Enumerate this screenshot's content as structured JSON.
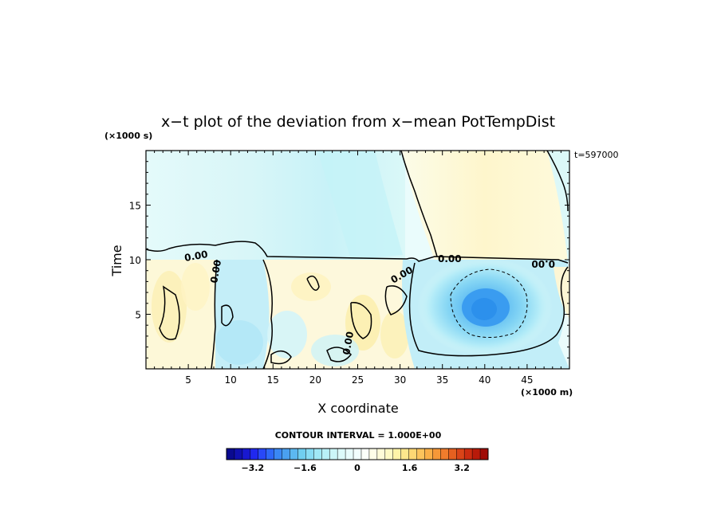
{
  "chart_data": {
    "type": "heatmap",
    "title": "x−t plot of the deviation from x−mean PotTempDist",
    "xlabel": "X coordinate",
    "ylabel": "Time",
    "x_unit": "(×1000 m)",
    "y_unit": "(×1000 s)",
    "xlim": [
      0,
      50
    ],
    "ylim": [
      0,
      20
    ],
    "x_ticks": [
      5,
      10,
      15,
      20,
      25,
      30,
      35,
      40,
      45
    ],
    "x_tick_labels": [
      "5",
      "10",
      "15",
      "20",
      "25",
      "30",
      "35",
      "40",
      "45"
    ],
    "y_ticks": [
      5,
      10,
      15
    ],
    "y_tick_labels": [
      "5",
      "10",
      "15"
    ],
    "corner_label": "t=597000",
    "contour_interval_text": "CONTOUR INTERVAL = 1.000E+00",
    "contour_labels": [
      "0.00",
      "0.00",
      "0.00",
      "0.00",
      "0.00",
      "0.00"
    ],
    "colorbar": {
      "range": [
        -4,
        4
      ],
      "tick_values": [
        -3.2,
        -1.6,
        0,
        1.6,
        3.2
      ],
      "tick_labels": [
        "−3.2",
        "−1.6",
        "0",
        "1.6",
        "3.2"
      ],
      "colors": [
        "#0a0a90",
        "#1010b0",
        "#1818d0",
        "#2028ee",
        "#2848f8",
        "#2e68f8",
        "#3a88f4",
        "#4aa0f0",
        "#5cb8f0",
        "#70cef0",
        "#88dcf4",
        "#a0e8f6",
        "#b8f0f8",
        "#ccf6f8",
        "#dcfafa",
        "#e8fcfc",
        "#f2fefe",
        "#fbfffa",
        "#fefee8",
        "#fefcd8",
        "#fefac4",
        "#fef4a8",
        "#fee88c",
        "#fed874",
        "#fcc45c",
        "#fab048",
        "#f69838",
        "#f07c2c",
        "#e66020",
        "#da4418",
        "#cc2c10",
        "#b81a0a",
        "#a00c06"
      ]
    },
    "regions": [
      {
        "name": "upper-cold-region",
        "x": [
          0,
          29
        ],
        "t": [
          10,
          20
        ],
        "approx_value": -0.3
      },
      {
        "name": "upper-warm-region",
        "x": [
          29,
          47
        ],
        "t": [
          10,
          20
        ],
        "approx_value": 0.2
      },
      {
        "name": "upper-right-cold-region",
        "x": [
          47,
          50
        ],
        "t": [
          13,
          20
        ],
        "approx_value": -0.2
      },
      {
        "name": "lower-warm-band",
        "x": [
          0,
          8
        ],
        "t": [
          0,
          10
        ],
        "approx_value": 0.4
      },
      {
        "name": "lower-cold-band",
        "x": [
          8,
          16
        ],
        "t": [
          0,
          10
        ],
        "approx_value": -0.5
      },
      {
        "name": "lower-mixed-band",
        "x": [
          16,
          33
        ],
        "t": [
          0,
          10
        ],
        "approx_value": 0.3
      },
      {
        "name": "cold-anomaly",
        "center": [
          40,
          5.8
        ],
        "approx_min": -2.0
      }
    ]
  }
}
